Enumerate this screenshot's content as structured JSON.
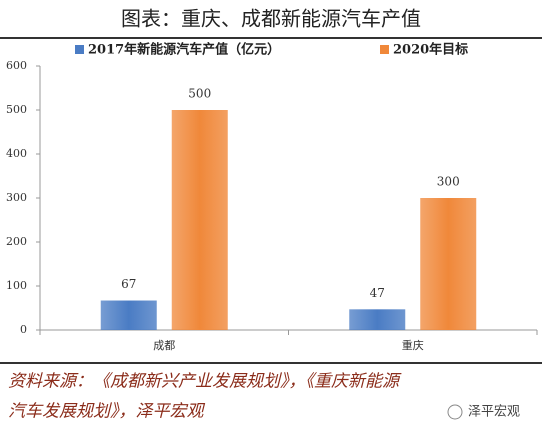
{
  "chart_data": {
    "type": "bar",
    "title": "图表：重庆、成都新能源汽车产值",
    "categories": [
      "成都",
      "重庆"
    ],
    "series": [
      {
        "name": "2017年新能源汽车产值（亿元）",
        "color": "#4a7cc4",
        "values": [
          67,
          47
        ]
      },
      {
        "name": "2020年目标",
        "color": "#f0883a",
        "values": [
          500,
          300
        ]
      }
    ],
    "ylim": [
      0,
      600
    ],
    "yticks": [
      0,
      100,
      200,
      300,
      400,
      500,
      600
    ],
    "grid": false,
    "legend": "top"
  },
  "footer": {
    "lines": [
      "资料来源：《成都新兴产业发展规划》，《重庆新能源",
      "汽车发展规划》，泽平宏观"
    ],
    "watermark": "泽平宏观"
  }
}
